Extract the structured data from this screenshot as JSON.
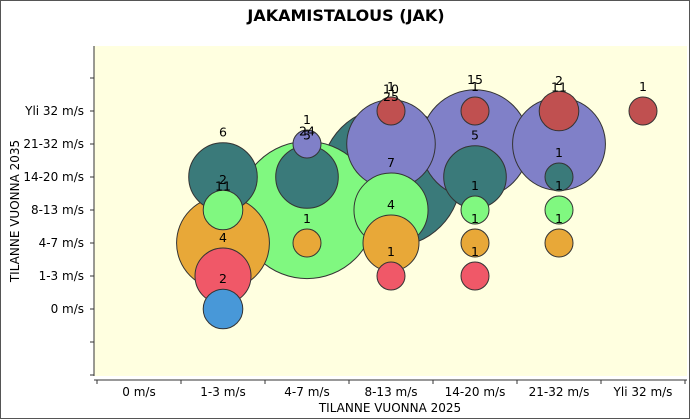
{
  "chart_data": {
    "type": "bubble",
    "title": "JAKAMISTALOUS (JAK)",
    "xlabel": "TILANNE VUONNA 2025",
    "ylabel": "TILANNE VUONNA 2035",
    "x_categories": [
      "0 m/s",
      "1-3 m/s",
      "4-7 m/s",
      "8-13 m/s",
      "14-20 m/s",
      "21-32 m/s",
      "Yli 32 m/s"
    ],
    "y_categories": [
      "0 m/s",
      "1-3 m/s",
      "4-7 m/s",
      "8-13 m/s",
      "14-20 m/s",
      "21-32 m/s",
      "Yli 32 m/s"
    ],
    "grid": false,
    "series": [
      {
        "color": "#3a7a7a",
        "points": [
          {
            "x": "1-3 m/s",
            "y": "14-20 m/s",
            "value": 6
          },
          {
            "x": "4-7 m/s",
            "y": "14-20 m/s",
            "value": 5
          },
          {
            "x": "8-13 m/s",
            "y": "14-20 m/s",
            "value": 25
          },
          {
            "x": "14-20 m/s",
            "y": "14-20 m/s",
            "value": 5
          },
          {
            "x": "21-32 m/s",
            "y": "14-20 m/s",
            "value": 1
          }
        ]
      },
      {
        "color": "#8080c8",
        "points": [
          {
            "x": "4-7 m/s",
            "y": "21-32 m/s",
            "value": 1
          },
          {
            "x": "8-13 m/s",
            "y": "21-32 m/s",
            "value": 10
          },
          {
            "x": "14-20 m/s",
            "y": "21-32 m/s",
            "value": 15
          },
          {
            "x": "21-32 m/s",
            "y": "21-32 m/s",
            "value": 11
          }
        ]
      },
      {
        "color": "#80f880",
        "points": [
          {
            "x": "1-3 m/s",
            "y": "8-13 m/s",
            "value": 2
          },
          {
            "x": "4-7 m/s",
            "y": "8-13 m/s",
            "value": 24
          },
          {
            "x": "8-13 m/s",
            "y": "8-13 m/s",
            "value": 7
          },
          {
            "x": "14-20 m/s",
            "y": "8-13 m/s",
            "value": 1
          },
          {
            "x": "21-32 m/s",
            "y": "8-13 m/s",
            "value": 1
          }
        ]
      },
      {
        "color": "#e8a838",
        "points": [
          {
            "x": "1-3 m/s",
            "y": "4-7 m/s",
            "value": 11
          },
          {
            "x": "4-7 m/s",
            "y": "4-7 m/s",
            "value": 1
          },
          {
            "x": "8-13 m/s",
            "y": "4-7 m/s",
            "value": 4
          },
          {
            "x": "14-20 m/s",
            "y": "4-7 m/s",
            "value": 1
          },
          {
            "x": "21-32 m/s",
            "y": "4-7 m/s",
            "value": 1
          }
        ]
      },
      {
        "color": "#f05868",
        "points": [
          {
            "x": "1-3 m/s",
            "y": "1-3 m/s",
            "value": 4
          },
          {
            "x": "8-13 m/s",
            "y": "1-3 m/s",
            "value": 1
          },
          {
            "x": "14-20 m/s",
            "y": "1-3 m/s",
            "value": 1
          }
        ]
      },
      {
        "color": "#4898d8",
        "points": [
          {
            "x": "1-3 m/s",
            "y": "0 m/s",
            "value": 2
          }
        ]
      },
      {
        "color": "#c05050",
        "points": [
          {
            "x": "8-13 m/s",
            "y": "Yli 32 m/s",
            "value": 1
          },
          {
            "x": "14-20 m/s",
            "y": "Yli 32 m/s",
            "value": 1
          },
          {
            "x": "21-32 m/s",
            "y": "Yli 32 m/s",
            "value": 2
          },
          {
            "x": "Yli 32 m/s",
            "y": "Yli 32 m/s",
            "value": 1
          }
        ]
      }
    ]
  }
}
